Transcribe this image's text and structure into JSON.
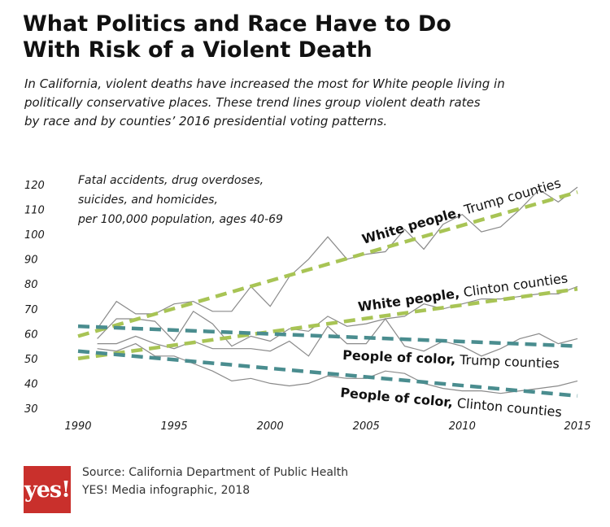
{
  "title_lines": [
    "What Politics and Race Have to Do",
    "With Risk of a Violent Death"
  ],
  "subtitle_lines": [
    "In California, violent deaths have increased the most for White people living in",
    "politically conservative places. These trend lines group violent death rates",
    "by race and by counties’ 2016 presidential voting patterns."
  ],
  "measure_note_lines": [
    "Fatal accidents, drug overdoses,",
    "suicides, and homicides,",
    "per 100,000 population, ages 40-69"
  ],
  "source_lines": [
    "Source: California Department of Public Health",
    "YES! Media infographic, 2018"
  ],
  "logo_text": "yes!",
  "colors": {
    "white_trend": "#a8c455",
    "poc_trend": "#4a8d8f",
    "raw_line": "#8a8a8a",
    "logo_bg": "#c9302c"
  },
  "chart_data": {
    "type": "line",
    "x_ticks": [
      1990,
      1995,
      2000,
      2005,
      2010,
      2015
    ],
    "y_ticks": [
      30,
      40,
      50,
      60,
      70,
      80,
      90,
      100,
      110,
      120
    ],
    "xlim": [
      1990,
      2016
    ],
    "ylim": [
      30,
      120
    ],
    "grid": false,
    "series": [
      {
        "name": "White people, Trump counties",
        "label_bold": "White people,",
        "label_rest": " Trump counties",
        "style": "trend",
        "color": "#a8c455",
        "trend": [
          [
            1990,
            59
          ],
          [
            2016,
            117
          ]
        ],
        "x": [
          1991,
          1992,
          1993,
          1994,
          1995,
          1996,
          1997,
          1998,
          1999,
          2000,
          2001,
          2002,
          2003,
          2004,
          2005,
          2006,
          2007,
          2008,
          2009,
          2010,
          2011,
          2012,
          2013,
          2014,
          2015,
          2016
        ],
        "values": [
          62,
          73,
          68,
          68,
          72,
          73,
          69,
          69,
          79,
          71,
          83,
          90,
          99,
          90,
          92,
          93,
          102,
          94,
          104,
          108,
          101,
          103,
          110,
          118,
          113,
          119
        ]
      },
      {
        "name": "White people, Clinton counties",
        "label_bold": "White people,",
        "label_rest": " Clinton counties",
        "style": "trend",
        "color": "#a8c455",
        "trend": [
          [
            1990,
            50
          ],
          [
            2016,
            78
          ]
        ],
        "x": [
          1991,
          1992,
          1993,
          1994,
          1995,
          1996,
          1997,
          1998,
          1999,
          2000,
          2001,
          2002,
          2003,
          2004,
          2005,
          2006,
          2007,
          2008,
          2009,
          2010,
          2011,
          2012,
          2013,
          2014,
          2015,
          2016
        ],
        "values": [
          58,
          66,
          66,
          65,
          57,
          69,
          64,
          55,
          59,
          57,
          62,
          61,
          67,
          63,
          64,
          66,
          67,
          72,
          70,
          72,
          74,
          74,
          75,
          76,
          76,
          79
        ]
      },
      {
        "name": "People of color, Trump counties",
        "label_bold": "People of color,",
        "label_rest": " Trump counties",
        "style": "trend",
        "color": "#4a8d8f",
        "trend": [
          [
            1990,
            63
          ],
          [
            2016,
            55
          ]
        ],
        "x": [
          1991,
          1992,
          1993,
          1994,
          1995,
          1996,
          1997,
          1998,
          1999,
          2000,
          2001,
          2002,
          2003,
          2004,
          2005,
          2006,
          2007,
          2008,
          2009,
          2010,
          2011,
          2012,
          2013,
          2014,
          2015,
          2016
        ],
        "values": [
          56,
          56,
          59,
          56,
          54,
          57,
          54,
          54,
          54,
          53,
          57,
          51,
          63,
          56,
          56,
          66,
          55,
          53,
          57,
          55,
          51,
          54,
          58,
          60,
          56,
          58
        ]
      },
      {
        "name": "People of color, Clinton counties",
        "label_bold": "People of color,",
        "label_rest": " Clinton counties",
        "style": "trend",
        "color": "#4a8d8f",
        "trend": [
          [
            1990,
            53
          ],
          [
            2016,
            35
          ]
        ],
        "x": [
          1991,
          1992,
          1993,
          1994,
          1995,
          1996,
          1997,
          1998,
          1999,
          2000,
          2001,
          2002,
          2003,
          2004,
          2005,
          2006,
          2007,
          2008,
          2009,
          2010,
          2011,
          2012,
          2013,
          2014,
          2015,
          2016
        ],
        "values": [
          54,
          53,
          56,
          51,
          51,
          48,
          45,
          41,
          42,
          40,
          39,
          40,
          43,
          42,
          42,
          45,
          44,
          40,
          38,
          37,
          37,
          36,
          37,
          38,
          39,
          41
        ]
      }
    ]
  }
}
